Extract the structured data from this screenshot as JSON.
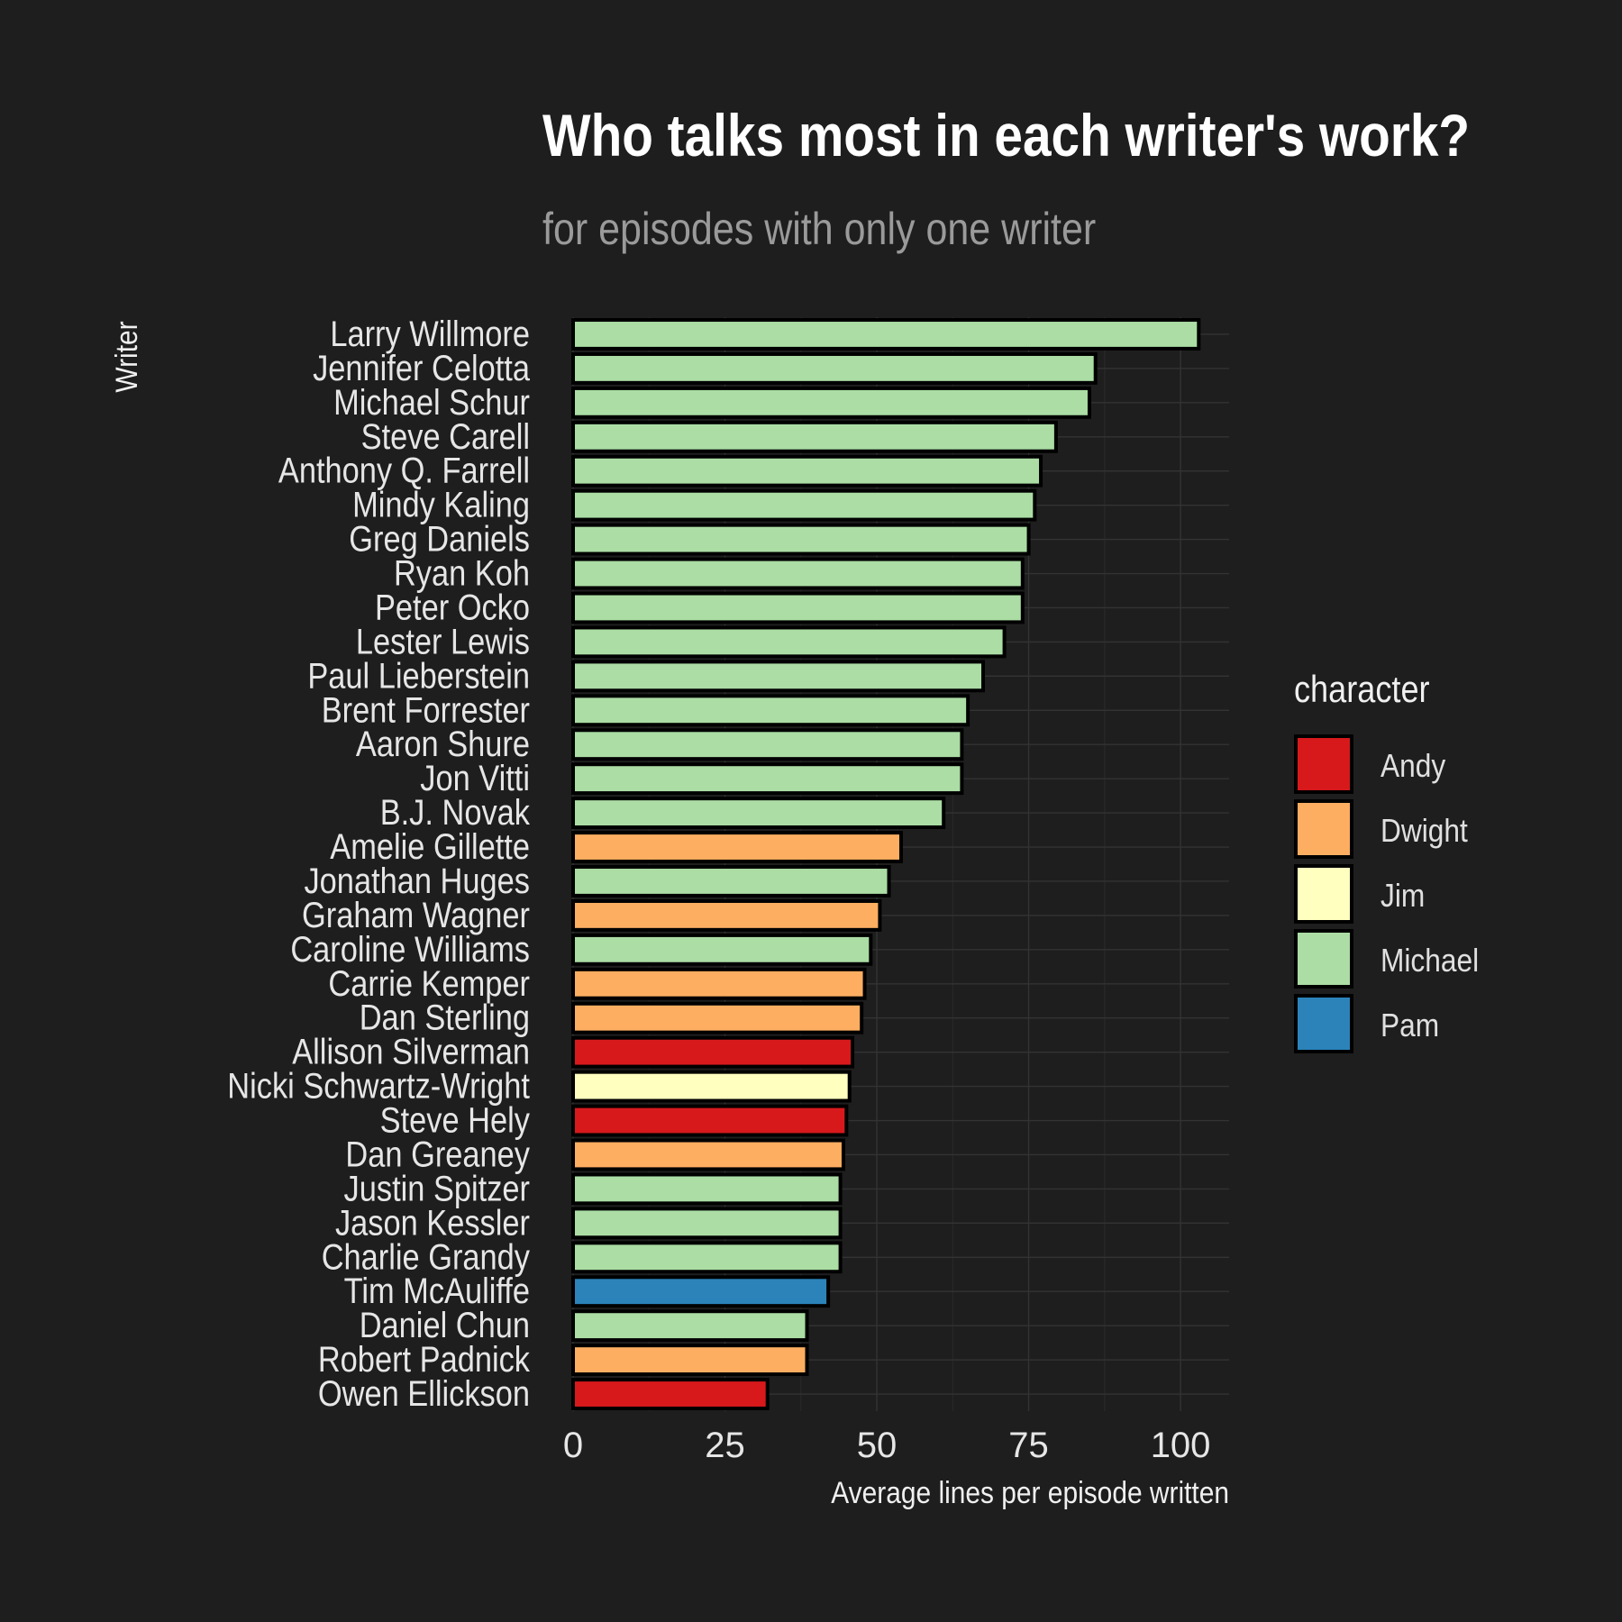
{
  "chart_data": {
    "type": "bar",
    "orientation": "horizontal",
    "title": "Who talks most in each writer's work?",
    "subtitle": "for episodes with only one writer",
    "xlabel": "Average lines per episode written",
    "ylabel": "Writer",
    "xlim": [
      0,
      108
    ],
    "xticks": [
      0,
      25,
      50,
      75,
      100
    ],
    "grid": true,
    "legend": {
      "title": "character",
      "placement": "right",
      "items": [
        {
          "name": "Andy",
          "color": "#d7191c"
        },
        {
          "name": "Dwight",
          "color": "#fdae61"
        },
        {
          "name": "Jim",
          "color": "#ffffbf"
        },
        {
          "name": "Michael",
          "color": "#abdda4"
        },
        {
          "name": "Pam",
          "color": "#2b83ba"
        }
      ]
    },
    "bars": [
      {
        "writer": "Larry Willmore",
        "value": 103,
        "character": "Michael"
      },
      {
        "writer": "Jennifer Celotta",
        "value": 86,
        "character": "Michael"
      },
      {
        "writer": "Michael Schur",
        "value": 85,
        "character": "Michael"
      },
      {
        "writer": "Steve Carell",
        "value": 79.5,
        "character": "Michael"
      },
      {
        "writer": "Anthony Q. Farrell",
        "value": 77,
        "character": "Michael"
      },
      {
        "writer": "Mindy Kaling",
        "value": 76,
        "character": "Michael"
      },
      {
        "writer": "Greg Daniels",
        "value": 75,
        "character": "Michael"
      },
      {
        "writer": "Ryan Koh",
        "value": 74,
        "character": "Michael"
      },
      {
        "writer": "Peter Ocko",
        "value": 74,
        "character": "Michael"
      },
      {
        "writer": "Lester Lewis",
        "value": 71,
        "character": "Michael"
      },
      {
        "writer": "Paul Lieberstein",
        "value": 67.5,
        "character": "Michael"
      },
      {
        "writer": "Brent Forrester",
        "value": 65,
        "character": "Michael"
      },
      {
        "writer": "Aaron Shure",
        "value": 64,
        "character": "Michael"
      },
      {
        "writer": "Jon Vitti",
        "value": 64,
        "character": "Michael"
      },
      {
        "writer": "B.J. Novak",
        "value": 61,
        "character": "Michael"
      },
      {
        "writer": "Amelie Gillette",
        "value": 54,
        "character": "Dwight"
      },
      {
        "writer": "Jonathan Huges",
        "value": 52,
        "character": "Michael"
      },
      {
        "writer": "Graham Wagner",
        "value": 50.5,
        "character": "Dwight"
      },
      {
        "writer": "Caroline Williams",
        "value": 49,
        "character": "Michael"
      },
      {
        "writer": "Carrie Kemper",
        "value": 48,
        "character": "Dwight"
      },
      {
        "writer": "Dan Sterling",
        "value": 47.5,
        "character": "Dwight"
      },
      {
        "writer": "Allison Silverman",
        "value": 46,
        "character": "Andy"
      },
      {
        "writer": "Nicki Schwartz-Wright",
        "value": 45.5,
        "character": "Jim"
      },
      {
        "writer": "Steve Hely",
        "value": 45,
        "character": "Andy"
      },
      {
        "writer": "Dan Greaney",
        "value": 44.5,
        "character": "Dwight"
      },
      {
        "writer": "Justin Spitzer",
        "value": 44,
        "character": "Michael"
      },
      {
        "writer": "Jason Kessler",
        "value": 44,
        "character": "Michael"
      },
      {
        "writer": "Charlie Grandy",
        "value": 44,
        "character": "Michael"
      },
      {
        "writer": "Tim McAuliffe",
        "value": 42,
        "character": "Pam"
      },
      {
        "writer": "Daniel Chun",
        "value": 38.5,
        "character": "Michael"
      },
      {
        "writer": "Robert Padnick",
        "value": 38.5,
        "character": "Dwight"
      },
      {
        "writer": "Owen Ellickson",
        "value": 32,
        "character": "Andy"
      }
    ]
  }
}
